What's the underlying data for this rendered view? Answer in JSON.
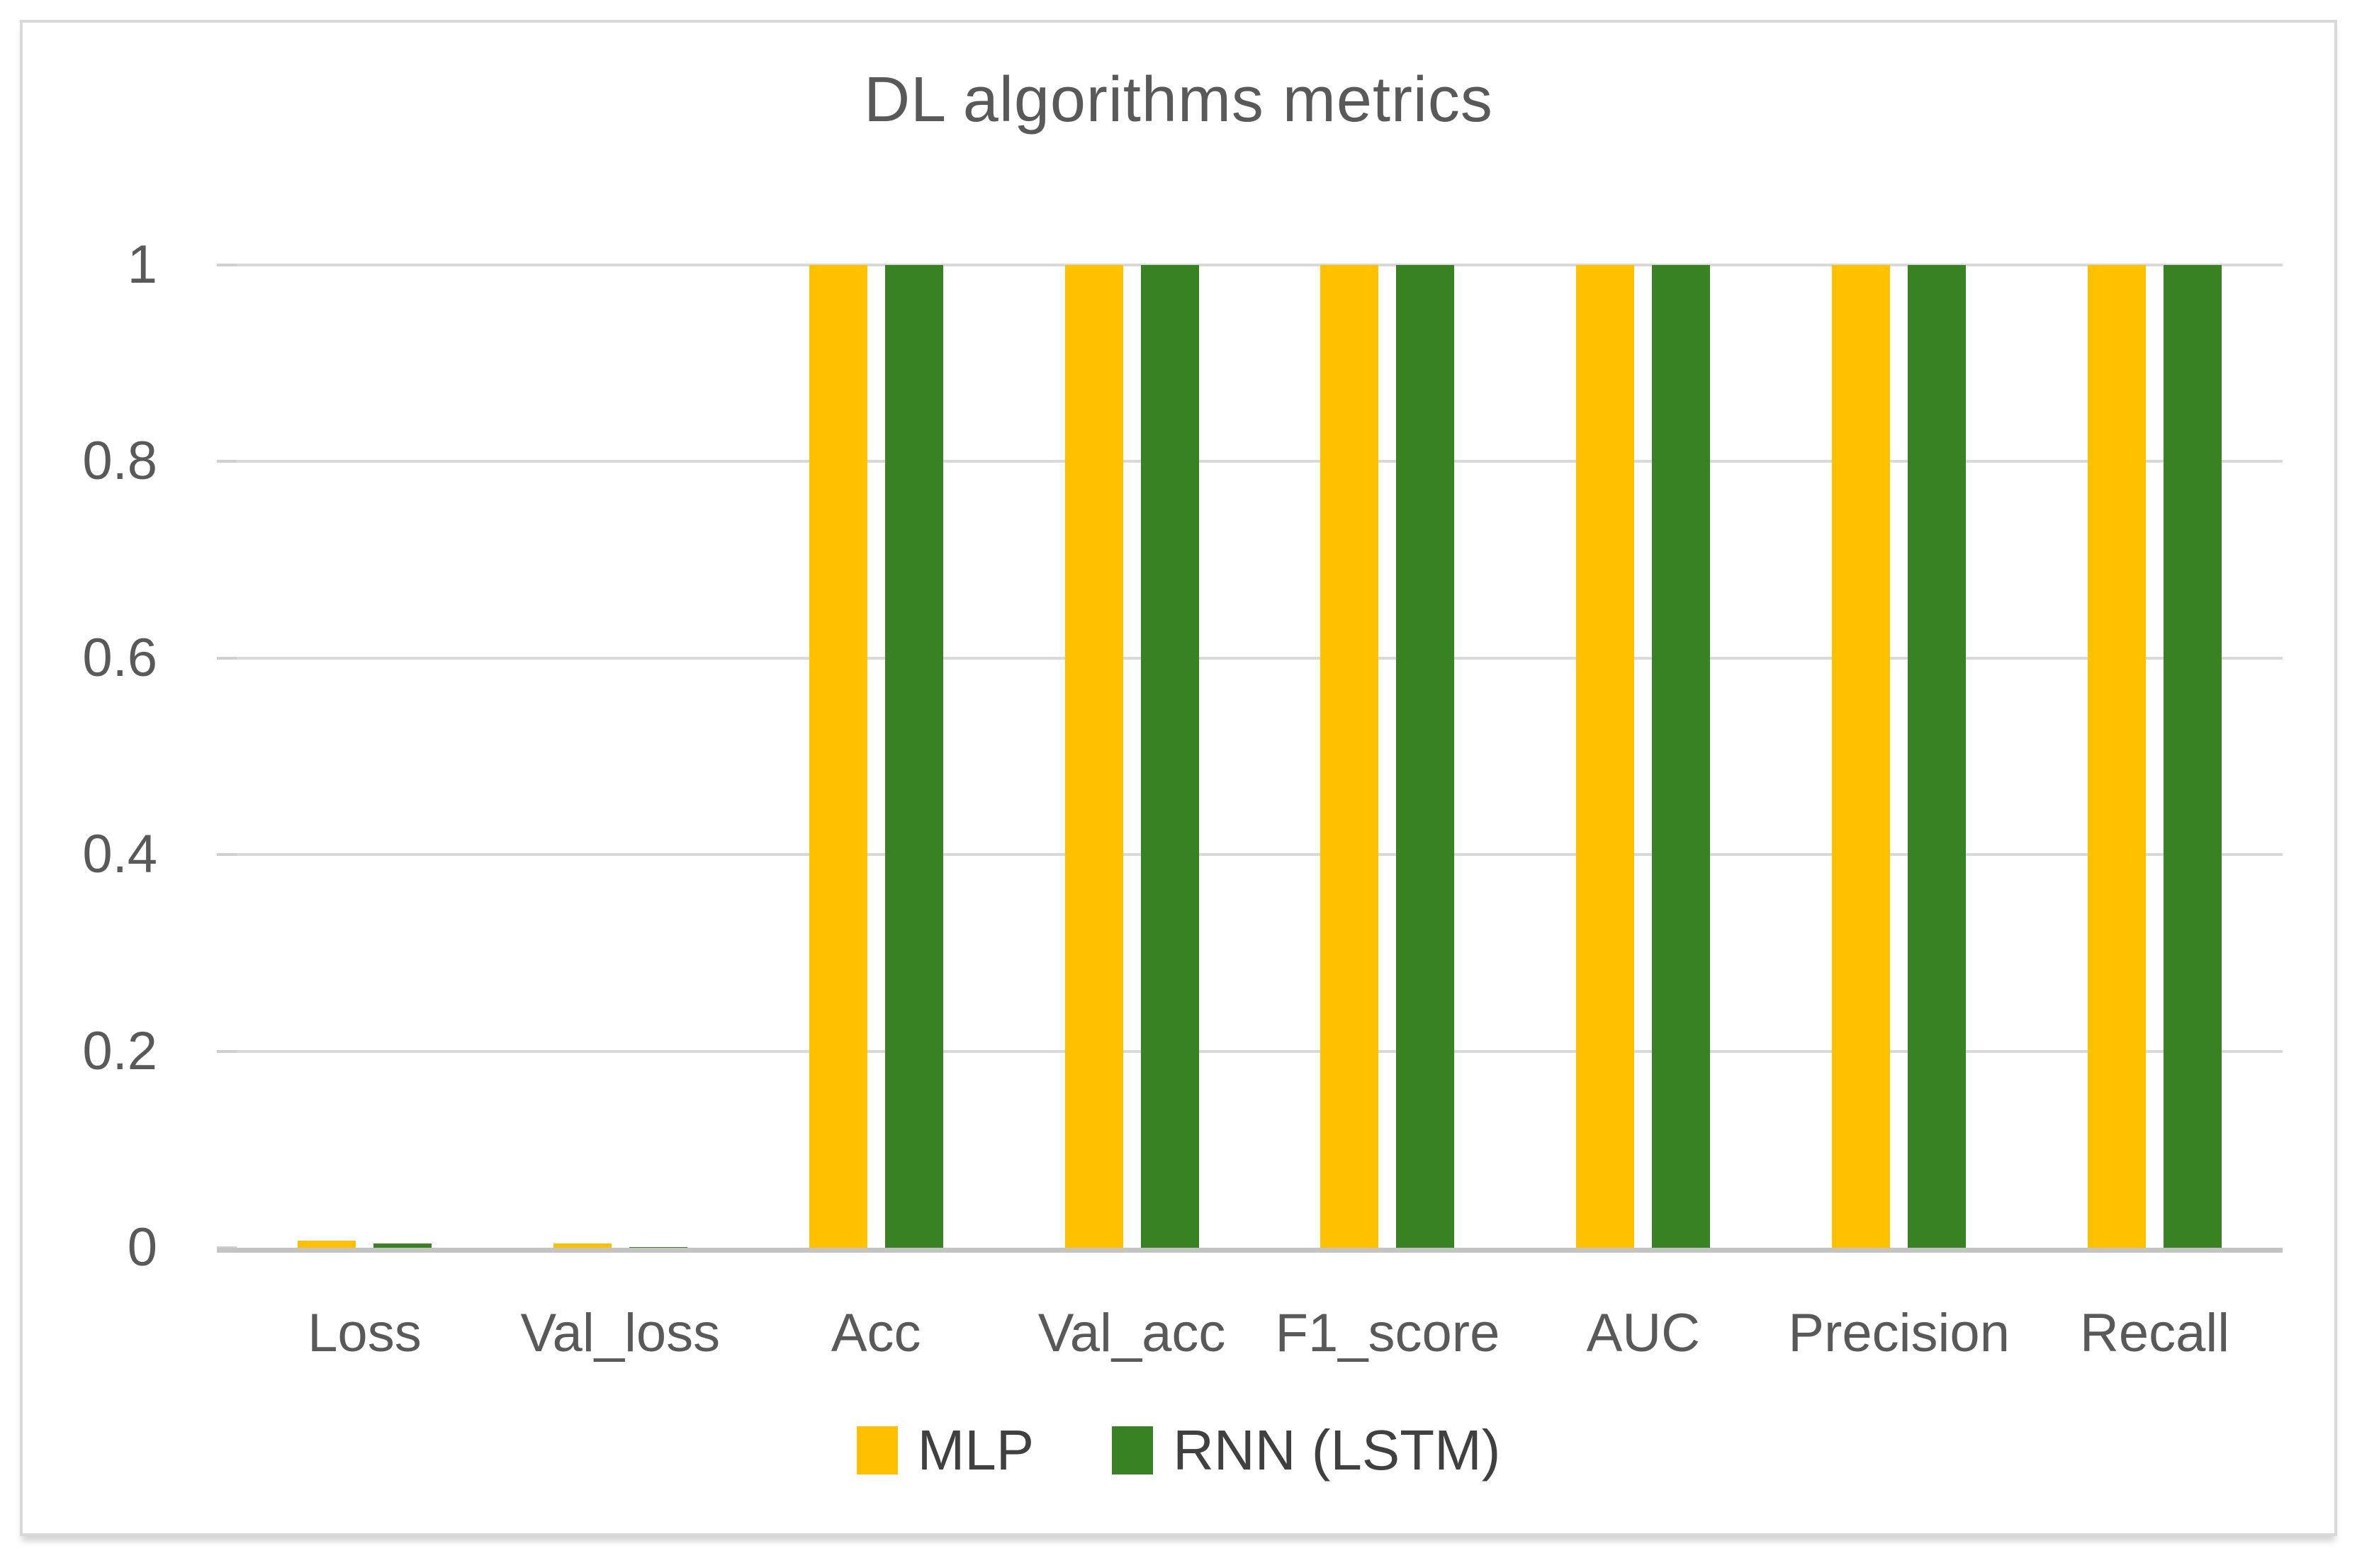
{
  "chart_data": {
    "type": "bar",
    "title": "DL algorithms metrics",
    "categories": [
      "Loss",
      "Val_loss",
      "Acc",
      "Val_acc",
      "F1_score",
      "AUC",
      "Precision",
      "Recall"
    ],
    "series": [
      {
        "name": "MLP",
        "color": "#FFC000",
        "values": [
          0.007,
          0.004,
          1,
          1,
          1,
          1,
          1,
          1
        ]
      },
      {
        "name": "RNN (LSTM)",
        "color": "#388223",
        "values": [
          0.004,
          0.001,
          1,
          1,
          1,
          1,
          1,
          1
        ]
      }
    ],
    "ylim": [
      0,
      1
    ],
    "yticks": [
      0,
      0.2,
      0.4,
      0.6,
      0.8,
      1
    ],
    "ytick_labels": [
      "0",
      "0.2",
      "0.4",
      "0.6",
      "0.8",
      "1"
    ],
    "grid": true,
    "legend_position": "bottom",
    "colors": {
      "text": "#595959",
      "gridline": "#d9d9d9",
      "axis_line": "#c3c3c3",
      "card_border": "#d9d9d9",
      "background": "#ffffff"
    }
  }
}
